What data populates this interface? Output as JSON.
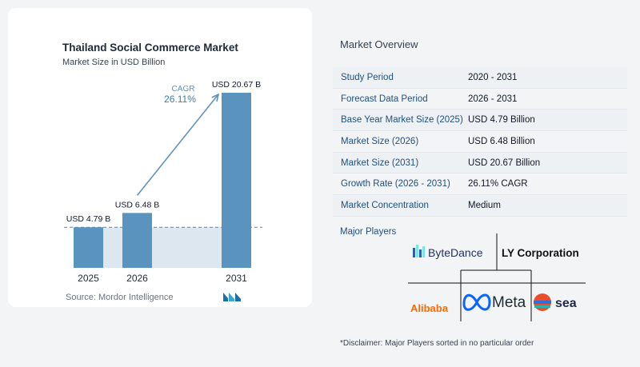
{
  "chart_data": {
    "type": "bar",
    "title": "Thailand Social Commerce Market",
    "subtitle": "Market Size in USD Billion",
    "categories": [
      "2025",
      "2026",
      "2031"
    ],
    "values": [
      4.79,
      6.48,
      20.67
    ],
    "data_labels": [
      "USD 4.79 B",
      "USD 6.48 B",
      "USD 20.67 B"
    ],
    "ylim": [
      0,
      20.67
    ],
    "cagr_label": "CAGR",
    "cagr_value": "26.11%",
    "bar_color": "#5b93bf",
    "baseline_value": 4.79
  },
  "source": "Source:  Mordor Intelligence",
  "overview": {
    "title": "Market Overview",
    "rows": [
      {
        "key": "Study Period",
        "value": "2020 - 2031"
      },
      {
        "key": "Forecast Data Period",
        "value": "2026 - 2031"
      },
      {
        "key": "Base Year Market Size (2025)",
        "value": "USD 4.79 Billion"
      },
      {
        "key": "Market Size (2026)",
        "value": "USD 6.48 Billion"
      },
      {
        "key": "Market Size (2031)",
        "value": "USD 20.67 Billion"
      },
      {
        "key": "Growth Rate (2026 - 2031)",
        "value": "26.11% CAGR"
      },
      {
        "key": "Market Concentration",
        "value": "Medium"
      }
    ]
  },
  "players": {
    "title": "Major Players",
    "names": [
      "ByteDance",
      "LY Corporation",
      "Alibaba",
      "Meta",
      "sea"
    ]
  },
  "disclaimer": "*Disclaimer: Major Players sorted in no particular order"
}
